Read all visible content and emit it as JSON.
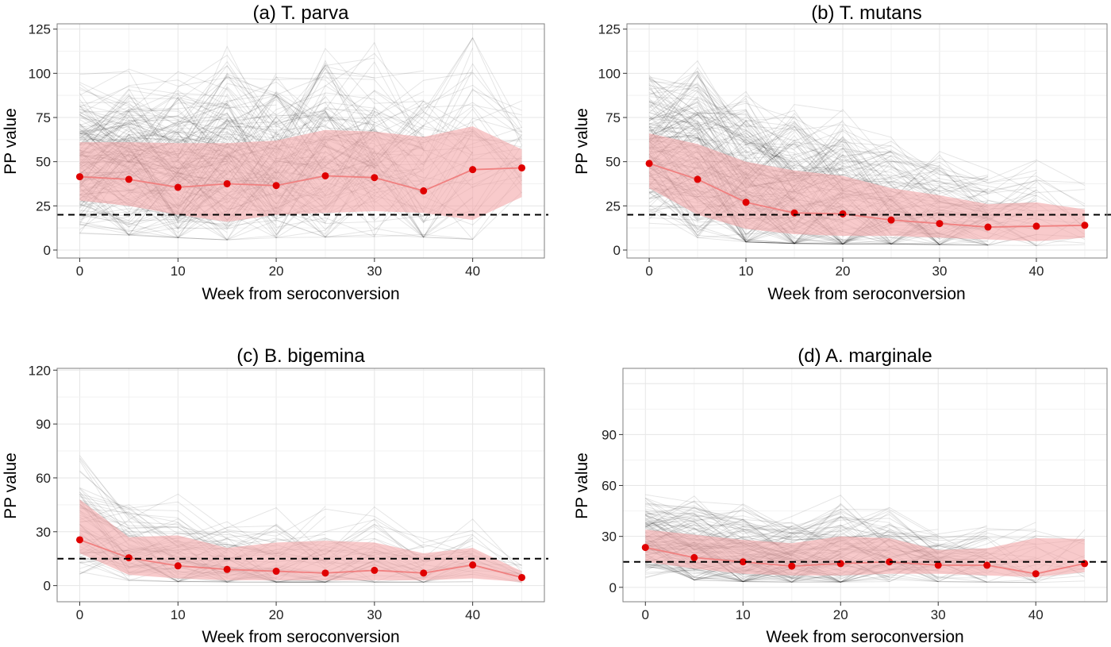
{
  "chart_data": [
    {
      "type": "line",
      "title": "(a) T. parva",
      "xlabel": "Week from seroconversion",
      "ylabel": "PP value",
      "xlim": [
        -2.3,
        47.3
      ],
      "ylim": [
        -4.5,
        128
      ],
      "xticks": [
        0,
        10,
        20,
        30,
        40
      ],
      "yticks": [
        0,
        25,
        50,
        75,
        100,
        125
      ],
      "grid": true,
      "threshold": 20,
      "x": [
        0,
        5,
        10,
        15,
        20,
        25,
        30,
        35,
        40,
        45
      ],
      "mean": [
        41.5,
        40,
        35.5,
        37.5,
        36.5,
        42,
        41,
        33.5,
        45.5,
        46.5
      ],
      "band_upper": [
        61,
        61,
        60.5,
        60.5,
        62,
        68,
        67,
        64,
        70,
        57
      ],
      "band_lower": [
        28,
        25,
        20,
        16,
        20,
        21,
        22,
        21,
        17,
        30
      ]
    },
    {
      "type": "line",
      "title": "(b) T. mutans",
      "xlabel": "Week from seroconversion",
      "ylabel": "PP value",
      "xlim": [
        -2.3,
        47.3
      ],
      "ylim": [
        -4.5,
        128
      ],
      "xticks": [
        0,
        10,
        20,
        30,
        40
      ],
      "yticks": [
        0,
        25,
        50,
        75,
        100,
        125
      ],
      "grid": true,
      "threshold": 20,
      "x": [
        0,
        5,
        10,
        15,
        20,
        25,
        30,
        35,
        40,
        45
      ],
      "mean": [
        49,
        40,
        27,
        21,
        20.5,
        17,
        15,
        13,
        13.5,
        14
      ],
      "band_upper": [
        66,
        60,
        50,
        45,
        42,
        35,
        31,
        26,
        27,
        23
      ],
      "band_lower": [
        35,
        20,
        12,
        9,
        8,
        8,
        7,
        6,
        5,
        7
      ]
    },
    {
      "type": "line",
      "title": "(c) B. bigemina",
      "xlabel": "Week from seroconversion",
      "ylabel": "PP value",
      "xlim": [
        -2.3,
        47.3
      ],
      "ylim": [
        -9,
        121
      ],
      "xticks": [
        0,
        10,
        20,
        30,
        40
      ],
      "yticks": [
        0,
        30,
        60,
        90,
        120
      ],
      "grid": true,
      "threshold": 15,
      "x": [
        0,
        5,
        10,
        15,
        20,
        25,
        30,
        35,
        40,
        45
      ],
      "mean": [
        25.5,
        15.5,
        11,
        9,
        8,
        7,
        8.5,
        7,
        11.5,
        4.5
      ],
      "band_upper": [
        48,
        27,
        28,
        21,
        24,
        25,
        24,
        18,
        21,
        8
      ],
      "band_lower": [
        18,
        6,
        4,
        3,
        3,
        3,
        3,
        3,
        4,
        2
      ]
    },
    {
      "type": "line",
      "title": "(d) A. marginale",
      "xlabel": "Week from seroconversion",
      "ylabel": "PP value",
      "xlim": [
        -2.3,
        47.3
      ],
      "ylim": [
        -8.5,
        129
      ],
      "xticks": [
        0,
        10,
        20,
        30,
        40
      ],
      "yticks": [
        0,
        30,
        60,
        90
      ],
      "grid": true,
      "threshold": 15,
      "x": [
        0,
        5,
        10,
        15,
        20,
        25,
        30,
        35,
        40,
        45
      ],
      "mean": [
        23.5,
        17.5,
        15,
        12.5,
        14,
        15,
        13,
        13,
        8,
        14
      ],
      "band_upper": [
        34,
        31,
        28,
        26,
        30,
        29,
        22,
        23,
        29,
        28.5
      ],
      "band_lower": [
        15,
        11,
        8,
        7,
        7,
        8,
        8,
        7,
        6,
        9
      ]
    }
  ],
  "colors": {
    "mean_point": "#e00000",
    "mean_line": "#f08080",
    "band_fill": "#f4a6a8",
    "individual_lines": "#000000",
    "threshold_line": "#000000"
  }
}
